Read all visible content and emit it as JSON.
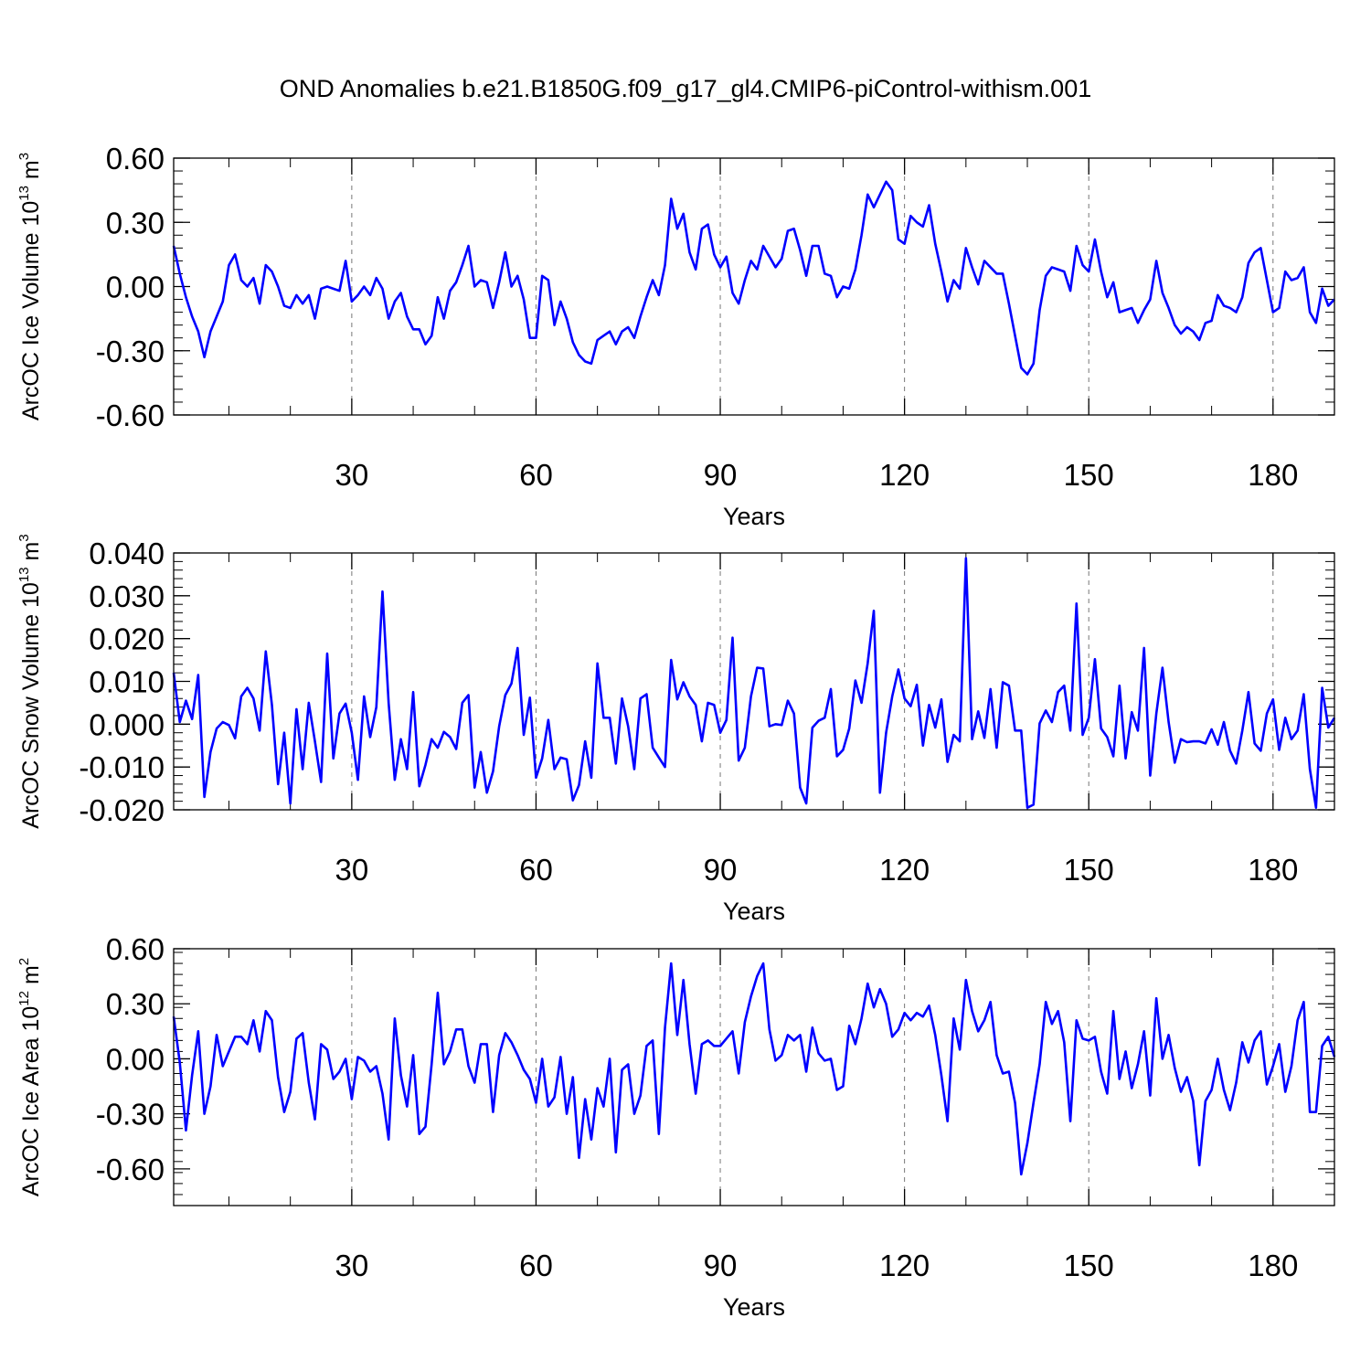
{
  "chart_data": [
    {
      "type": "line",
      "title": "OND Anomalies b.e21.B1850G.f09_g17_gl4.CMIP6-piControl-withism.001",
      "xlabel": "Years",
      "ylabel_text": "ArcOC Ice Volume 10",
      "ylabel_exp": "13",
      "ylabel_unit": " m",
      "ylabel_unit_exp": "3",
      "xlim": [
        1,
        190
      ],
      "ylim": [
        -0.6,
        0.6
      ],
      "xticks": [
        30,
        60,
        90,
        120,
        150,
        180
      ],
      "xtick_labels": [
        "30",
        "60",
        "90",
        "120",
        "150",
        "180"
      ],
      "yticks": [
        -0.6,
        -0.3,
        0.0,
        0.3,
        0.6
      ],
      "ytick_labels": [
        "-0.60",
        "-0.30",
        "0.00",
        "0.30",
        "0.60"
      ],
      "grid": "vertical dashed at x ticks",
      "color": "#0000ff",
      "x_start": 1,
      "values": [
        0.19,
        0.06,
        -0.05,
        -0.14,
        -0.21,
        -0.33,
        -0.21,
        -0.14,
        -0.07,
        0.1,
        0.15,
        0.03,
        0.0,
        0.04,
        -0.08,
        0.1,
        0.07,
        0.0,
        -0.09,
        -0.1,
        -0.04,
        -0.08,
        -0.04,
        -0.15,
        -0.01,
        0.0,
        -0.01,
        -0.02,
        0.12,
        -0.07,
        -0.04,
        0.0,
        -0.04,
        0.04,
        -0.01,
        -0.15,
        -0.07,
        -0.03,
        -0.14,
        -0.2,
        -0.2,
        -0.27,
        -0.23,
        -0.05,
        -0.15,
        -0.02,
        0.02,
        0.1,
        0.19,
        0.0,
        0.03,
        0.02,
        -0.1,
        0.02,
        0.16,
        0.0,
        0.05,
        -0.06,
        -0.24,
        -0.24,
        0.05,
        0.03,
        -0.18,
        -0.07,
        -0.15,
        -0.26,
        -0.32,
        -0.35,
        -0.36,
        -0.25,
        -0.23,
        -0.21,
        -0.27,
        -0.21,
        -0.19,
        -0.24,
        -0.14,
        -0.05,
        0.03,
        -0.04,
        0.1,
        0.41,
        0.27,
        0.34,
        0.16,
        0.08,
        0.27,
        0.29,
        0.15,
        0.09,
        0.14,
        -0.03,
        -0.08,
        0.03,
        0.12,
        0.08,
        0.19,
        0.14,
        0.09,
        0.13,
        0.26,
        0.27,
        0.17,
        0.05,
        0.19,
        0.19,
        0.06,
        0.05,
        -0.05,
        0.0,
        -0.01,
        0.08,
        0.24,
        0.43,
        0.37,
        0.43,
        0.49,
        0.45,
        0.22,
        0.2,
        0.33,
        0.3,
        0.28,
        0.38,
        0.2,
        0.07,
        -0.07,
        0.03,
        -0.01,
        0.18,
        0.09,
        0.01,
        0.12,
        0.09,
        0.06,
        0.06,
        -0.08,
        -0.23,
        -0.38,
        -0.41,
        -0.36,
        -0.11,
        0.05,
        0.09,
        0.08,
        0.07,
        -0.02,
        0.19,
        0.1,
        0.07,
        0.22,
        0.07,
        -0.05,
        0.02,
        -0.12,
        -0.11,
        -0.1,
        -0.17,
        -0.11,
        -0.06,
        0.12,
        -0.03,
        -0.1,
        -0.18,
        -0.22,
        -0.19,
        -0.21,
        -0.25,
        -0.17,
        -0.16,
        -0.04,
        -0.09,
        -0.1,
        -0.12,
        -0.05,
        0.11,
        0.16,
        0.18,
        0.03,
        -0.12,
        -0.1,
        0.07,
        0.03,
        0.04,
        0.09,
        -0.12,
        -0.17,
        -0.01,
        -0.09,
        -0.06
      ]
    },
    {
      "type": "line",
      "xlabel": "Years",
      "ylabel_text": "ArcOC Snow Volume 10",
      "ylabel_exp": "13",
      "ylabel_unit": " m",
      "ylabel_unit_exp": "3",
      "xlim": [
        1,
        190
      ],
      "ylim": [
        -0.02,
        0.04
      ],
      "xticks": [
        30,
        60,
        90,
        120,
        150,
        180
      ],
      "xtick_labels": [
        "30",
        "60",
        "90",
        "120",
        "150",
        "180"
      ],
      "yticks": [
        -0.02,
        -0.01,
        0.0,
        0.01,
        0.02,
        0.03,
        0.04
      ],
      "ytick_labels": [
        "-0.020",
        "-0.010",
        "0.000",
        "0.010",
        "0.020",
        "0.030",
        "0.040"
      ],
      "grid": "vertical dashed at x ticks",
      "color": "#0000ff",
      "x_start": 1,
      "values": [
        0.012,
        0.0005,
        0.0055,
        0.0012,
        0.0115,
        -0.017,
        -0.0065,
        -0.001,
        0.0005,
        -0.0002,
        -0.0033,
        0.0065,
        0.0085,
        0.006,
        -0.0015,
        0.017,
        0.0045,
        -0.014,
        -0.002,
        -0.0185,
        0.0035,
        -0.0105,
        0.005,
        -0.004,
        -0.0135,
        0.0165,
        -0.008,
        0.0025,
        0.0048,
        -0.002,
        -0.013,
        0.0065,
        -0.003,
        0.004,
        0.031,
        0.005,
        -0.013,
        -0.0035,
        -0.0105,
        0.0075,
        -0.0145,
        -0.0095,
        -0.0035,
        -0.0055,
        -0.0018,
        -0.003,
        -0.0058,
        0.005,
        0.0068,
        -0.0148,
        -0.0065,
        -0.016,
        -0.011,
        -0.0005,
        0.0068,
        0.0095,
        0.0178,
        -0.0025,
        0.0062,
        -0.0125,
        -0.008,
        0.001,
        -0.0105,
        -0.0078,
        -0.0082,
        -0.0178,
        -0.0142,
        -0.004,
        -0.0125,
        0.0142,
        0.0015,
        0.0015,
        -0.0092,
        0.006,
        -0.0005,
        -0.0105,
        0.006,
        0.007,
        -0.0055,
        -0.0078,
        -0.01,
        0.015,
        0.0058,
        0.0098,
        0.0065,
        0.0045,
        -0.004,
        0.005,
        0.0045,
        -0.002,
        0.001,
        0.0202,
        -0.0085,
        -0.0055,
        0.0065,
        0.0132,
        0.013,
        -0.0005,
        0.0,
        -0.0002,
        0.0055,
        0.0025,
        -0.0148,
        -0.0185,
        -0.0008,
        0.0008,
        0.0015,
        0.0082,
        -0.0075,
        -0.006,
        -0.001,
        0.0102,
        0.005,
        0.0142,
        0.0265,
        -0.016,
        -0.002,
        0.0065,
        0.0128,
        0.006,
        0.0042,
        0.0092,
        -0.005,
        0.0045,
        -0.0008,
        0.0058,
        -0.0088,
        -0.0025,
        -0.004,
        0.0388,
        -0.0035,
        0.003,
        -0.0032,
        0.0082,
        -0.0055,
        0.0098,
        0.009,
        -0.0015,
        -0.0015,
        -0.0195,
        -0.0188,
        0.0002,
        0.0032,
        0.0005,
        0.0075,
        0.009,
        -0.0015,
        0.0282,
        -0.0025,
        0.0015,
        0.0152,
        -0.001,
        -0.003,
        -0.0075,
        0.009,
        -0.008,
        0.0028,
        -0.0015,
        0.0178,
        -0.012,
        0.0025,
        0.0132,
        0.0005,
        -0.009,
        -0.0035,
        -0.0042,
        -0.004,
        -0.004,
        -0.0045,
        -0.0012,
        -0.0048,
        0.0005,
        -0.0062,
        -0.0092,
        -0.0015,
        0.0075,
        -0.0045,
        -0.0062,
        0.0025,
        0.0058,
        -0.006,
        0.0015,
        -0.0035,
        -0.0015,
        0.007,
        -0.0105,
        -0.0195,
        0.0085,
        -0.0008,
        0.0015
      ]
    },
    {
      "type": "line",
      "xlabel": "Years",
      "ylabel_text": "ArcOC Ice Area 10",
      "ylabel_exp": "12",
      "ylabel_unit": " m",
      "ylabel_unit_exp": "2",
      "xlim": [
        1,
        190
      ],
      "ylim": [
        -0.8,
        0.6
      ],
      "xticks": [
        30,
        60,
        90,
        120,
        150,
        180
      ],
      "xtick_labels": [
        "30",
        "60",
        "90",
        "120",
        "150",
        "180"
      ],
      "yticks": [
        -0.6,
        -0.3,
        0.0,
        0.3,
        0.6
      ],
      "ytick_labels": [
        "-0.60",
        "-0.30",
        "0.00",
        "0.30",
        "0.60"
      ],
      "grid": "vertical dashed at x ticks",
      "color": "#0000ff",
      "x_start": 1,
      "values": [
        0.23,
        -0.02,
        -0.39,
        -0.09,
        0.15,
        -0.3,
        -0.15,
        0.13,
        -0.04,
        0.04,
        0.12,
        0.12,
        0.08,
        0.21,
        0.04,
        0.26,
        0.21,
        -0.1,
        -0.29,
        -0.18,
        0.11,
        0.14,
        -0.13,
        -0.33,
        0.08,
        0.05,
        -0.11,
        -0.07,
        0.0,
        -0.22,
        0.01,
        -0.01,
        -0.07,
        -0.04,
        -0.19,
        -0.44,
        0.22,
        -0.09,
        -0.26,
        0.02,
        -0.41,
        -0.37,
        -0.03,
        0.36,
        -0.03,
        0.04,
        0.16,
        0.16,
        -0.04,
        -0.13,
        0.08,
        0.08,
        -0.29,
        0.02,
        0.14,
        0.09,
        0.02,
        -0.06,
        -0.11,
        -0.24,
        0.0,
        -0.26,
        -0.21,
        0.01,
        -0.3,
        -0.1,
        -0.54,
        -0.22,
        -0.44,
        -0.16,
        -0.26,
        0.0,
        -0.51,
        -0.06,
        -0.03,
        -0.3,
        -0.2,
        0.07,
        0.1,
        -0.41,
        0.17,
        0.52,
        0.13,
        0.43,
        0.08,
        -0.19,
        0.08,
        0.1,
        0.07,
        0.07,
        0.11,
        0.15,
        -0.08,
        0.2,
        0.34,
        0.45,
        0.52,
        0.16,
        -0.01,
        0.02,
        0.13,
        0.1,
        0.13,
        -0.07,
        0.17,
        0.03,
        -0.01,
        0.0,
        -0.17,
        -0.15,
        0.18,
        0.08,
        0.22,
        0.41,
        0.28,
        0.38,
        0.3,
        0.12,
        0.16,
        0.25,
        0.21,
        0.25,
        0.23,
        0.29,
        0.13,
        -0.09,
        -0.34,
        0.22,
        0.05,
        0.43,
        0.26,
        0.15,
        0.21,
        0.31,
        0.02,
        -0.08,
        -0.07,
        -0.24,
        -0.63,
        -0.46,
        -0.24,
        -0.03,
        0.31,
        0.19,
        0.26,
        0.09,
        -0.34,
        0.21,
        0.11,
        0.1,
        0.12,
        -0.07,
        -0.19,
        0.26,
        -0.11,
        0.04,
        -0.16,
        -0.03,
        0.15,
        -0.2,
        0.33,
        0.0,
        0.13,
        -0.05,
        -0.18,
        -0.1,
        -0.23,
        -0.58,
        -0.23,
        -0.17,
        0.0,
        -0.17,
        -0.28,
        -0.13,
        0.09,
        -0.02,
        0.1,
        0.15,
        -0.14,
        -0.04,
        0.08,
        -0.18,
        -0.04,
        0.21,
        0.31,
        -0.29,
        -0.29,
        0.07,
        0.12,
        0.01
      ]
    }
  ],
  "line_color": "#0000ff"
}
